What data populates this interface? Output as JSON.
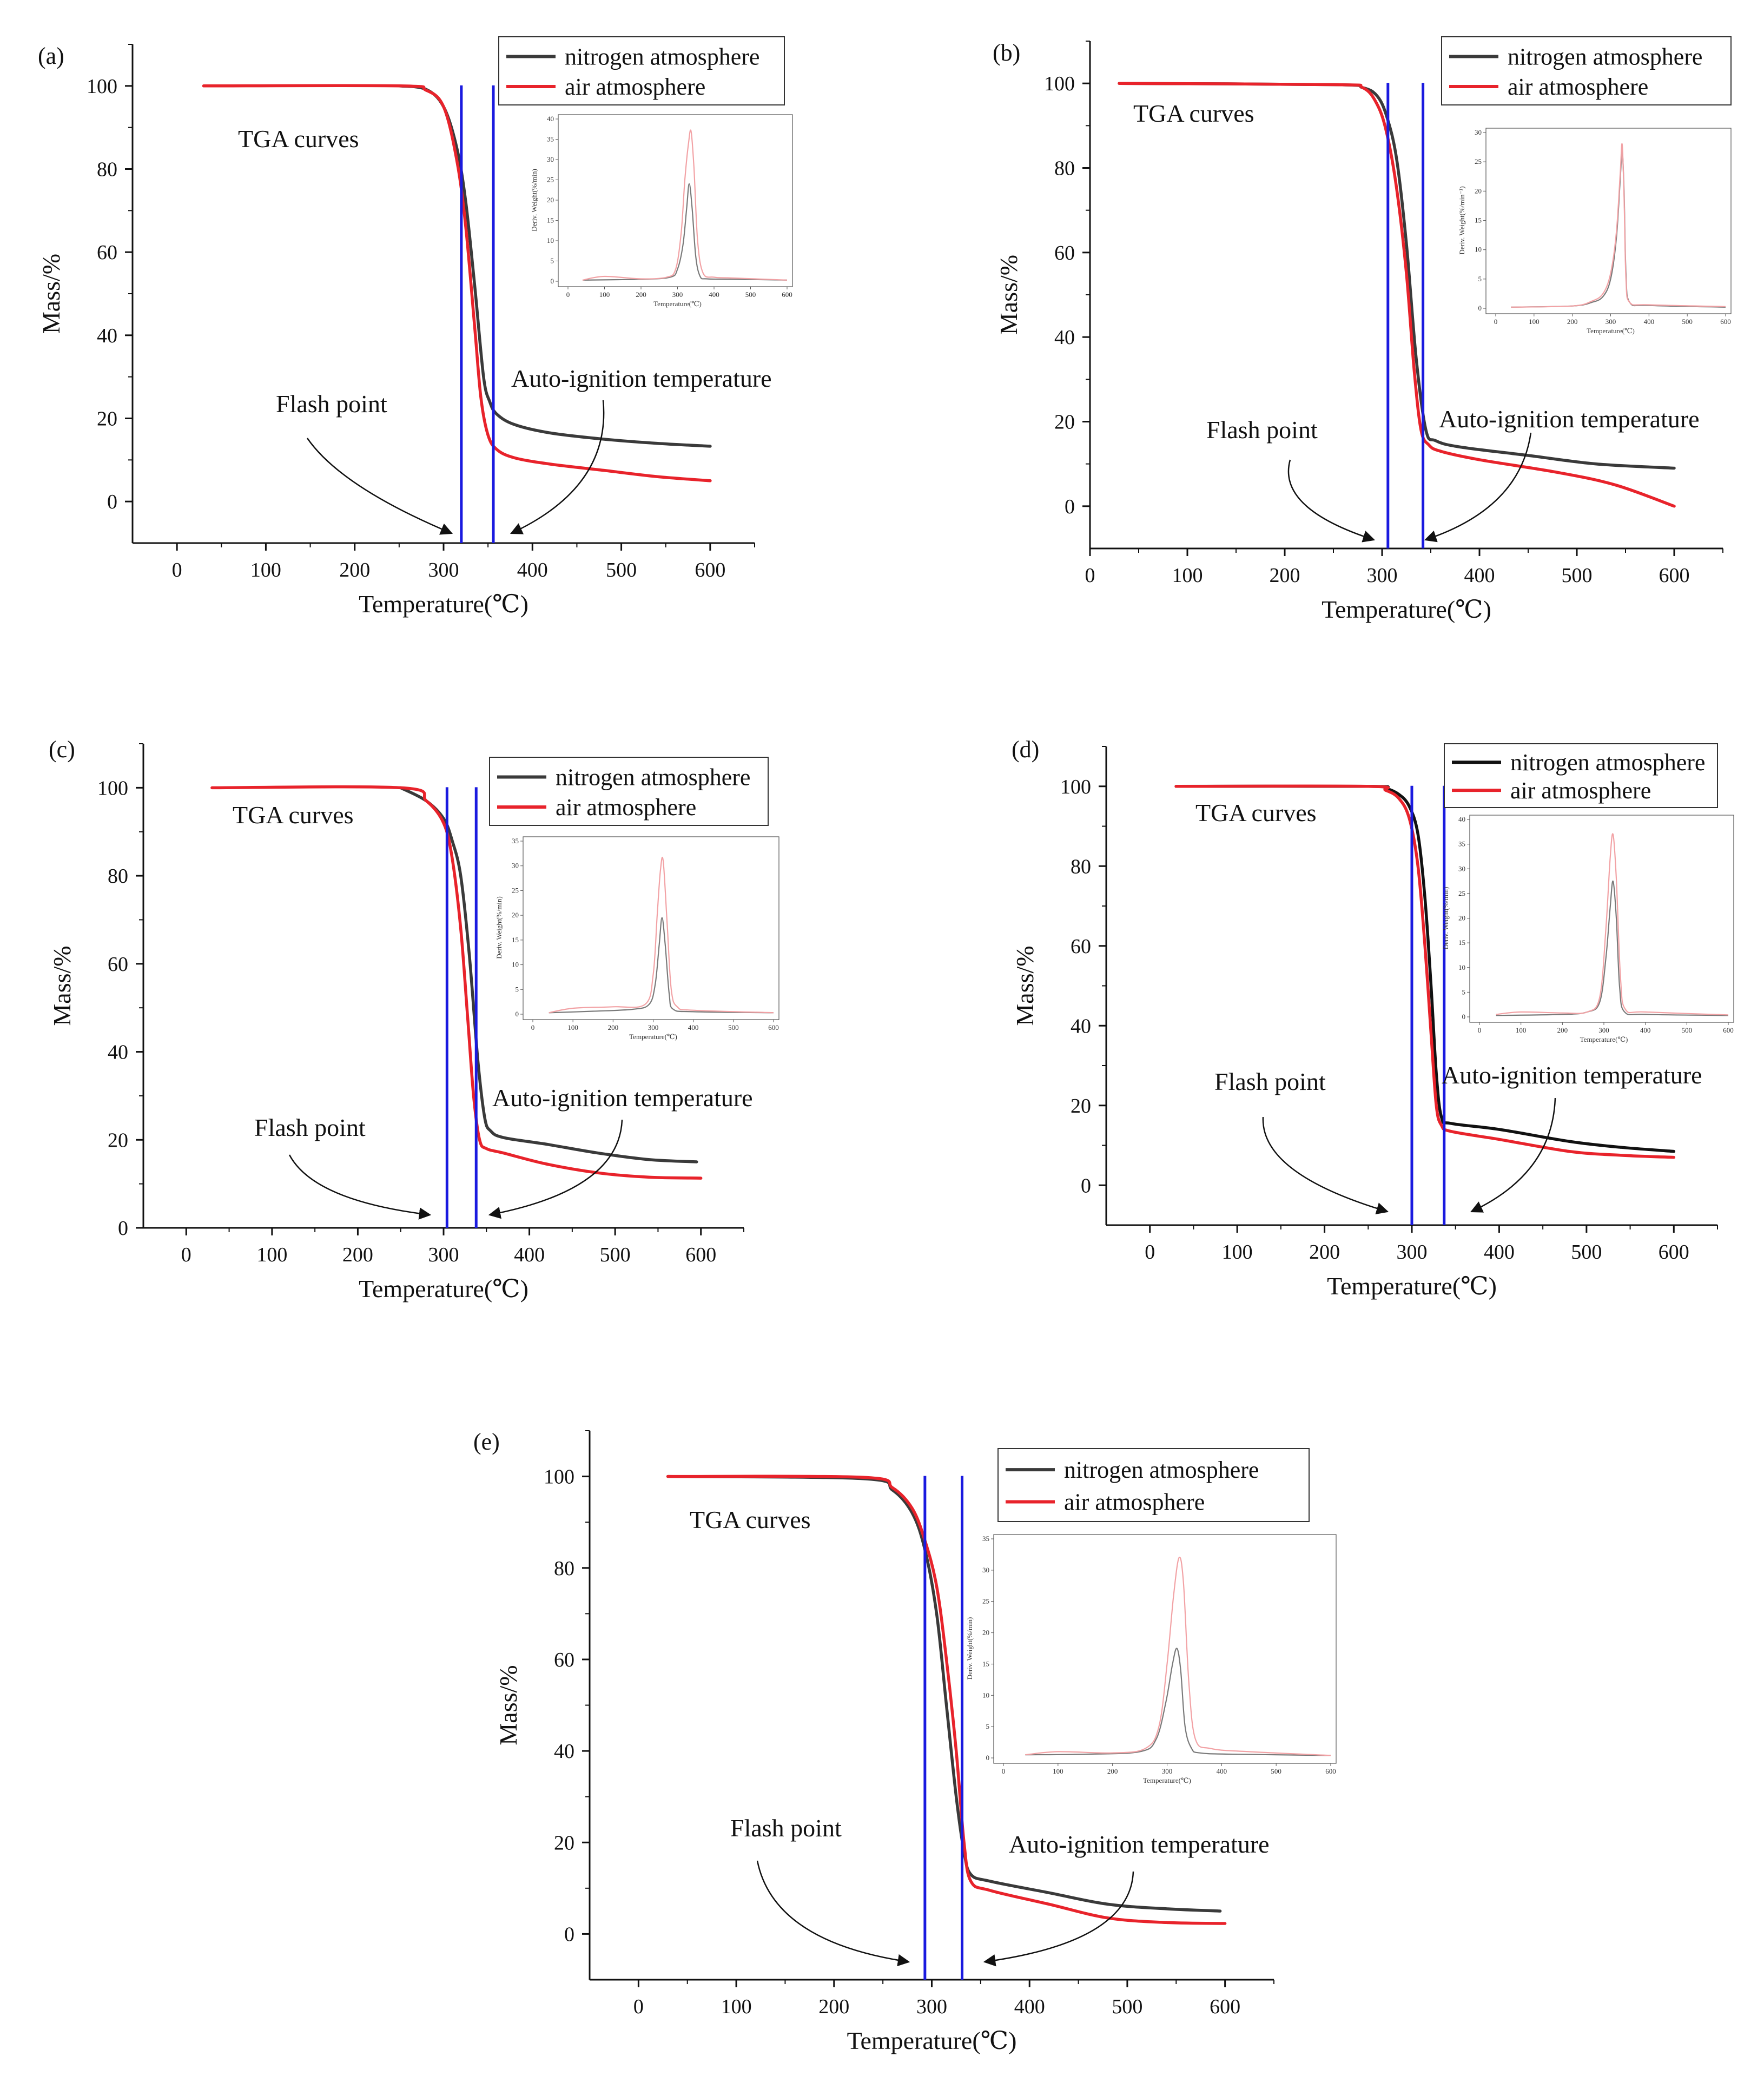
{
  "figure": {
    "description_free": true
  },
  "colors": {
    "nitrogen": "#3a3a3a",
    "nitrogen_d": "#111111",
    "air": "#e8232b",
    "marker": "#1a1adf",
    "inset_nitrogen": "#7a7a7a",
    "inset_air": "#f2a2a5",
    "axis": "#111111"
  },
  "chart_data": [
    {
      "id": "a",
      "type": "line",
      "panel_label": "(a)",
      "title": "TGA curves",
      "xlabel": "Temperature(℃)",
      "ylabel": "Mass/%",
      "xlim": [
        -50,
        650
      ],
      "ylim": [
        -10,
        110
      ],
      "xticks": [
        0,
        100,
        200,
        300,
        400,
        500,
        600
      ],
      "yticks": [
        0,
        20,
        40,
        60,
        80,
        100
      ],
      "legend": [
        "nitrogen atmosphere",
        "air atmosphere"
      ],
      "annotations": {
        "flash": "Flash point",
        "auto": "Auto-ignition temperature"
      },
      "flash_point": 320,
      "auto_ignition": 356,
      "series": [
        {
          "name": "nitrogen atmosphere",
          "x": [
            250,
            280,
            300,
            315,
            325,
            335,
            345,
            352,
            360,
            380,
            420,
            480,
            540,
            600
          ],
          "y": [
            100,
            99.2,
            95,
            85,
            72,
            52,
            30,
            24,
            21,
            18.5,
            16.5,
            15,
            14,
            13.3
          ]
        },
        {
          "name": "air atmosphere",
          "x": [
            30,
            250,
            280,
            300,
            315,
            325,
            335,
            342,
            350,
            360,
            380,
            420,
            480,
            540,
            600
          ],
          "y": [
            100,
            100,
            99,
            95,
            82,
            66,
            42,
            25,
            16,
            12.5,
            10.5,
            9,
            7.5,
            6,
            5
          ]
        }
      ],
      "inset": {
        "ylabel": "Deriv. Weight(%/min)",
        "xlabel": "Temperature(℃)",
        "xlim": [
          0,
          600
        ],
        "ylim": [
          0,
          40
        ],
        "xticks": [
          0,
          100,
          200,
          300,
          400,
          500,
          600
        ],
        "yticks": [
          0,
          5,
          10,
          15,
          20,
          25,
          30,
          35,
          40
        ],
        "series": [
          {
            "name": "nitrogen atmosphere",
            "x": [
              40,
              200,
              280,
              300,
              315,
              325,
              332,
              340,
              350,
              362,
              380,
              450,
              600
            ],
            "y": [
              0.3,
              0.5,
              1,
              3,
              9,
              18,
              24,
              18,
              6,
              1.2,
              0.6,
              0.5,
              0.3
            ]
          },
          {
            "name": "air atmosphere",
            "x": [
              40,
              100,
              200,
              270,
              295,
              310,
              320,
              330,
              337,
              345,
              355,
              370,
              400,
              450,
              600
            ],
            "y": [
              0.3,
              1.2,
              0.6,
              1,
              3,
              12,
              25,
              34,
              37,
              28,
              10,
              2,
              1,
              0.8,
              0.3
            ]
          }
        ]
      }
    },
    {
      "id": "b",
      "type": "line",
      "panel_label": "(b)",
      "title": "TGA curves",
      "xlabel": "Temperature(℃)",
      "ylabel": "Mass/%",
      "xlim": [
        0,
        650
      ],
      "ylim": [
        -10,
        110
      ],
      "xticks": [
        0,
        100,
        200,
        300,
        400,
        500,
        600
      ],
      "yticks": [
        0,
        20,
        40,
        60,
        80,
        100
      ],
      "legend": [
        "nitrogen atmosphere",
        "air atmosphere"
      ],
      "annotations": {
        "flash": "Flash point",
        "auto": "Auto-ignition temperature"
      },
      "flash_point": 306,
      "auto_ignition": 342,
      "series": [
        {
          "name": "nitrogen atmosphere",
          "x": [
            30,
            250,
            280,
            295,
            305,
            315,
            325,
            335,
            345,
            355,
            380,
            450,
            520,
            600
          ],
          "y": [
            100,
            99.7,
            99,
            97,
            92,
            82,
            62,
            35,
            18,
            15.5,
            14,
            12,
            10,
            9
          ]
        },
        {
          "name": "air atmosphere",
          "x": [
            30,
            250,
            280,
            295,
            305,
            315,
            325,
            333,
            340,
            348,
            360,
            400,
            480,
            540,
            600
          ],
          "y": [
            100,
            99.7,
            99,
            95,
            88,
            75,
            55,
            32,
            18,
            14.5,
            13,
            11,
            8,
            5,
            0
          ]
        }
      ],
      "inset": {
        "ylabel": "Deriv. Weight(%/min⁻¹)",
        "xlabel": "Temperature(℃)",
        "xlim": [
          0,
          600
        ],
        "ylim": [
          0,
          30
        ],
        "xticks": [
          0,
          100,
          200,
          300,
          400,
          500,
          600
        ],
        "yticks": [
          0,
          5,
          10,
          15,
          20,
          25,
          30
        ],
        "series": [
          {
            "name": "nitrogen atmosphere",
            "x": [
              40,
              200,
              250,
              280,
              300,
              315,
              325,
              330,
              335,
              340,
              350,
              400,
              600
            ],
            "y": [
              0.2,
              0.4,
              1,
              2,
              5,
              12,
              22,
              27,
              20,
              6,
              1,
              0.5,
              0.2
            ]
          },
          {
            "name": "air atmosphere",
            "x": [
              40,
              200,
              250,
              280,
              300,
              315,
              325,
              330,
              335,
              340,
              350,
              400,
              600
            ],
            "y": [
              0.2,
              0.4,
              1.2,
              2.5,
              6,
              13,
              23,
              28,
              19,
              5,
              1,
              0.6,
              0.3
            ]
          }
        ]
      }
    },
    {
      "id": "c",
      "type": "line",
      "panel_label": "(c)",
      "title": "TGA curves",
      "xlabel": "Temperature(℃)",
      "ylabel": "Mass/%",
      "xlim": [
        -50,
        650
      ],
      "ylim": [
        0,
        110
      ],
      "xticks": [
        0,
        100,
        200,
        300,
        400,
        500,
        600
      ],
      "yticks": [
        0,
        20,
        40,
        60,
        80,
        100
      ],
      "legend": [
        "nitrogen atmosphere",
        "air atmosphere"
      ],
      "annotations": {
        "flash": "Flash point",
        "auto": "Auto-ignition temperature"
      },
      "flash_point": 304,
      "auto_ignition": 338,
      "series": [
        {
          "name": "nitrogen atmosphere",
          "x": [
            250,
            280,
            300,
            310,
            320,
            330,
            340,
            348,
            355,
            370,
            420,
            480,
            540,
            595
          ],
          "y": [
            100,
            97,
            93,
            88,
            80,
            62,
            38,
            25,
            22,
            20.5,
            19,
            17,
            15.5,
            15
          ]
        },
        {
          "name": "air atmosphere",
          "x": [
            30,
            250,
            280,
            300,
            310,
            320,
            328,
            335,
            342,
            350,
            370,
            420,
            480,
            540,
            600
          ],
          "y": [
            100,
            100,
            97,
            92,
            84,
            68,
            48,
            30,
            20,
            18,
            17,
            14.5,
            12.5,
            11.5,
            11.3
          ]
        }
      ],
      "inset": {
        "ylabel": "Deriv. Weight(%/min)",
        "xlabel": "Temperature(℃)",
        "xlim": [
          0,
          600
        ],
        "ylim": [
          0,
          35
        ],
        "xticks": [
          0,
          100,
          200,
          300,
          400,
          500,
          600
        ],
        "yticks": [
          0,
          5,
          10,
          15,
          20,
          25,
          30,
          35
        ],
        "series": [
          {
            "name": "nitrogen atmosphere",
            "x": [
              40,
              150,
              250,
              290,
              305,
              315,
              322,
              330,
              340,
              350,
              400,
              600
            ],
            "y": [
              0.3,
              0.6,
              1,
              2,
              6,
              14,
              19.5,
              14,
              4,
              1,
              0.5,
              0.3
            ]
          },
          {
            "name": "air atmosphere",
            "x": [
              40,
              100,
              200,
              280,
              300,
              310,
              318,
              325,
              335,
              345,
              360,
              400,
              600
            ],
            "y": [
              0.3,
              1.2,
              1.5,
              2,
              8,
              20,
              29,
              31,
              18,
              5,
              1.5,
              0.8,
              0.3
            ]
          }
        ]
      }
    },
    {
      "id": "d",
      "type": "line",
      "panel_label": "(d)",
      "title": "TGA curves",
      "xlabel": "Temperature(℃)",
      "ylabel": "Mass/%",
      "xlim": [
        -50,
        650
      ],
      "ylim": [
        -10,
        110
      ],
      "xticks": [
        0,
        100,
        200,
        300,
        400,
        500,
        600
      ],
      "yticks": [
        0,
        20,
        40,
        60,
        80,
        100
      ],
      "legend": [
        "nitrogen atmosphere",
        "air atmosphere"
      ],
      "annotations": {
        "flash": "Flash point",
        "auto": "Auto-ignition temperature"
      },
      "flash_point": 300,
      "auto_ignition": 337,
      "series": [
        {
          "name": "nitrogen atmosphere",
          "x": [
            30,
            250,
            270,
            285,
            297,
            307,
            315,
            322,
            328,
            334,
            345,
            400,
            480,
            540,
            600
          ],
          "y": [
            100,
            100,
            99.5,
            98,
            95,
            88,
            72,
            50,
            28,
            17,
            15.5,
            14,
            11,
            9.5,
            8.5
          ]
        },
        {
          "name": "air atmosphere",
          "x": [
            30,
            250,
            270,
            285,
            297,
            307,
            315,
            322,
            328,
            334,
            345,
            400,
            480,
            540,
            600
          ],
          "y": [
            100,
            100,
            99,
            97,
            92,
            80,
            60,
            38,
            20,
            15,
            13.5,
            11.5,
            8.5,
            7.5,
            7
          ]
        }
      ],
      "inset": {
        "ylabel": "Deriv. Weight(%/min)",
        "xlabel": "Temperature(℃)",
        "xlim": [
          0,
          600
        ],
        "ylim": [
          0,
          40
        ],
        "xticks": [
          0,
          100,
          200,
          300,
          400,
          500,
          600
        ],
        "yticks": [
          0,
          5,
          10,
          15,
          20,
          25,
          30,
          35,
          40
        ],
        "series": [
          {
            "name": "nitrogen atmosphere",
            "x": [
              40,
              200,
              260,
              290,
              305,
              315,
              322,
              330,
              338,
              350,
              400,
              600
            ],
            "y": [
              0.3,
              0.5,
              1,
              3,
              12,
              22,
              27.5,
              20,
              6,
              1,
              0.5,
              0.3
            ]
          },
          {
            "name": "air atmosphere",
            "x": [
              40,
              100,
              200,
              260,
              290,
              305,
              315,
              322,
              330,
              340,
              352,
              400,
              600
            ],
            "y": [
              0.5,
              1,
              0.8,
              1,
              4,
              18,
              32,
              37,
              28,
              8,
              1.5,
              1,
              0.4
            ]
          }
        ]
      }
    },
    {
      "id": "e",
      "type": "line",
      "panel_label": "(e)",
      "title": "TGA curves",
      "xlabel": "Temperature(℃)",
      "ylabel": "Mass/%",
      "xlim": [
        -50,
        650
      ],
      "ylim": [
        -10,
        110
      ],
      "xticks": [
        0,
        100,
        200,
        300,
        400,
        500,
        600
      ],
      "yticks": [
        0,
        20,
        40,
        60,
        80,
        100
      ],
      "legend": [
        "nitrogen atmosphere",
        "air atmosphere"
      ],
      "annotations": {
        "flash": "Flash point",
        "auto": "Auto-ignition temperature"
      },
      "flash_point": 293,
      "auto_ignition": 331,
      "series": [
        {
          "name": "nitrogen atmosphere",
          "x": [
            30,
            230,
            260,
            280,
            293,
            305,
            315,
            325,
            333,
            340,
            360,
            420,
            480,
            540,
            595
          ],
          "y": [
            100,
            99.5,
            97,
            92,
            84,
            70,
            50,
            30,
            18,
            13,
            11.5,
            9,
            6.5,
            5.5,
            5
          ]
        },
        {
          "name": "air atmosphere",
          "x": [
            30,
            230,
            260,
            280,
            293,
            305,
            315,
            325,
            333,
            340,
            360,
            420,
            480,
            540,
            600
          ],
          "y": [
            100,
            99.8,
            97.5,
            93,
            86,
            76,
            60,
            40,
            20,
            11.5,
            9.5,
            6.5,
            3.5,
            2.5,
            2.3
          ]
        }
      ],
      "inset": {
        "ylabel": "Deriv. Weight(%/min)",
        "xlabel": "Temperature(℃)",
        "xlim": [
          0,
          600
        ],
        "ylim": [
          0,
          35
        ],
        "xticks": [
          0,
          100,
          200,
          300,
          400,
          500,
          600
        ],
        "yticks": [
          0,
          5,
          10,
          15,
          20,
          25,
          30,
          35
        ],
        "series": [
          {
            "name": "nitrogen atmosphere",
            "x": [
              40,
              150,
              250,
              280,
              298,
              310,
              318,
              325,
              333,
              345,
              360,
              420,
              600
            ],
            "y": [
              0.5,
              0.6,
              1,
              3,
              9,
              15,
              17.5,
              14,
              5,
              1.5,
              0.8,
              0.6,
              0.4
            ]
          },
          {
            "name": "air atmosphere",
            "x": [
              40,
              100,
              200,
              260,
              285,
              300,
              312,
              322,
              330,
              340,
              352,
              380,
              450,
              600
            ],
            "y": [
              0.5,
              1,
              0.8,
              1.5,
              5,
              15,
              26,
              32,
              28,
              12,
              3,
              1.5,
              1,
              0.4
            ]
          }
        ]
      }
    }
  ]
}
